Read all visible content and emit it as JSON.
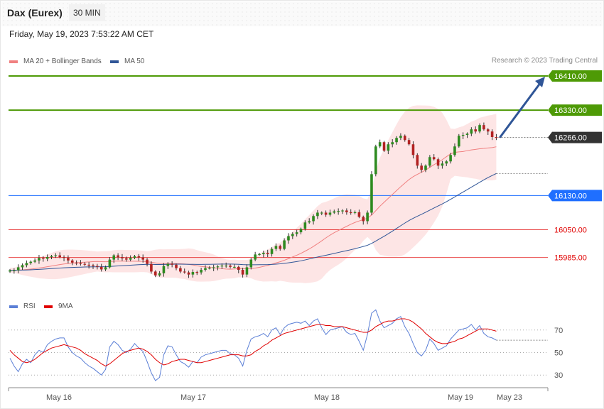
{
  "header": {
    "title": "Dax (Eurex)",
    "interval": "30 MIN"
  },
  "datetime": "Friday, May 19, 2023 7:53:22 AM CET",
  "legend": {
    "ma20": {
      "label": "MA 20 + Bollinger Bands",
      "color": "#f08080"
    },
    "ma50": {
      "label": "MA 50",
      "color": "#2f5597"
    },
    "rsi": {
      "label": "RSI",
      "color": "#5b7fd6"
    },
    "ma9": {
      "label": "9MA",
      "color": "#e00000"
    }
  },
  "credit": "Research © 2023 Trading Central",
  "chart_data": [
    {
      "type": "candlestick",
      "title": "",
      "y_range": [
        15905,
        16425
      ],
      "levels": [
        {
          "label": "16410.00",
          "value": 16410,
          "style": "resistance",
          "color": "#4e9a06",
          "badge": true
        },
        {
          "label": "16330.00",
          "value": 16330,
          "style": "resistance",
          "color": "#4e9a06",
          "badge": true
        },
        {
          "label": "16266.00",
          "value": 16266,
          "style": "last",
          "color": "#333333",
          "badge": true
        },
        {
          "label": "16130.00",
          "value": 16130,
          "style": "pivot",
          "color": "#1f6fff",
          "badge": true
        },
        {
          "label": "16050.00",
          "value": 16050,
          "style": "support",
          "color": "#e00000",
          "badge": false
        },
        {
          "label": "15985.00",
          "value": 15985,
          "style": "support",
          "color": "#e00000",
          "badge": false
        }
      ],
      "forecast_arrow": {
        "from": 16266,
        "to": 16410,
        "color": "#2f5597"
      },
      "close": [
        15955,
        15955,
        15962,
        15967,
        15972,
        15975,
        15978,
        15984,
        15982,
        15986,
        15988,
        15990,
        15986,
        15984,
        15978,
        15973,
        15972,
        15970,
        15968,
        15967,
        15965,
        15963,
        15957,
        15962,
        15980,
        15990,
        15986,
        15983,
        15980,
        15984,
        15988,
        15985,
        15980,
        15970,
        15952,
        15943,
        15948,
        15965,
        15970,
        15968,
        15960,
        15952,
        15950,
        15945,
        15951,
        15950,
        15956,
        15960,
        15961,
        15962,
        15964,
        15966,
        15966,
        15963,
        15963,
        15956,
        15945,
        15962,
        15980,
        15992,
        15993,
        15996,
        15993,
        16005,
        16012,
        16005,
        16025,
        16035,
        16040,
        16044,
        16052,
        16067,
        16070,
        16082,
        16090,
        16090,
        16085,
        16090,
        16093,
        16094,
        16095,
        16091,
        16090,
        16091,
        16080,
        16070,
        16090,
        16180,
        16245,
        16255,
        16235,
        16250,
        16255,
        16265,
        16270,
        16260,
        16250,
        16225,
        16200,
        16190,
        16200,
        16220,
        16215,
        16200,
        16205,
        16210,
        16225,
        16245,
        16270,
        16272,
        16275,
        16285,
        16280,
        16295,
        16285,
        16280,
        16267,
        16266
      ],
      "x_ticks": [
        "May 16",
        "May 17",
        "May 18",
        "May 19",
        "May 23"
      ]
    },
    {
      "type": "line",
      "title": "",
      "y_range": [
        10,
        90
      ],
      "y_ticks": [
        "70",
        "50",
        "30"
      ],
      "series": [
        {
          "name": "RSI",
          "color": "#5b7fd6",
          "values": [
            45,
            38,
            33,
            40,
            44,
            41,
            48,
            52,
            50,
            57,
            60,
            62,
            63,
            63,
            55,
            50,
            47,
            45,
            41,
            38,
            36,
            33,
            30,
            35,
            55,
            60,
            57,
            52,
            50,
            53,
            58,
            54,
            51,
            42,
            32,
            25,
            28,
            48,
            56,
            55,
            48,
            42,
            40,
            37,
            42,
            41,
            46,
            48,
            49,
            50,
            51,
            52,
            52,
            49,
            48,
            45,
            38,
            52,
            62,
            64,
            65,
            67,
            64,
            70,
            72,
            66,
            72,
            75,
            76,
            77,
            76,
            78,
            74,
            78,
            80,
            72,
            66,
            70,
            71,
            72,
            73,
            68,
            66,
            67,
            60,
            52,
            66,
            85,
            88,
            78,
            72,
            74,
            76,
            80,
            82,
            73,
            67,
            58,
            50,
            47,
            52,
            62,
            58,
            52,
            54,
            56,
            62,
            66,
            70,
            71,
            72,
            75,
            70,
            74,
            67,
            64,
            63,
            61
          ]
        },
        {
          "name": "9MA",
          "color": "#e00000",
          "values": [
            52,
            48,
            45,
            42,
            41,
            42,
            44,
            47,
            50,
            52,
            54,
            55,
            56,
            57,
            56,
            55,
            54,
            52,
            49,
            47,
            45,
            43,
            40,
            38,
            40,
            43,
            46,
            49,
            51,
            52,
            53,
            54,
            53,
            51,
            48,
            44,
            41,
            39,
            40,
            42,
            43,
            44,
            44,
            43,
            42,
            41,
            41,
            42,
            43,
            44,
            45,
            46,
            47,
            48,
            48,
            48,
            47,
            47,
            48,
            51,
            53,
            56,
            58,
            61,
            63,
            65,
            67,
            68,
            69,
            70,
            71,
            72,
            73,
            74,
            75,
            75,
            74,
            74,
            73,
            73,
            73,
            72,
            71,
            70,
            69,
            68,
            68,
            70,
            73,
            75,
            77,
            78,
            78,
            79,
            80,
            80,
            79,
            77,
            74,
            71,
            67,
            64,
            61,
            59,
            58,
            58,
            59,
            60,
            62,
            63,
            65,
            67,
            69,
            71,
            71,
            71,
            70,
            69
          ]
        }
      ]
    }
  ]
}
